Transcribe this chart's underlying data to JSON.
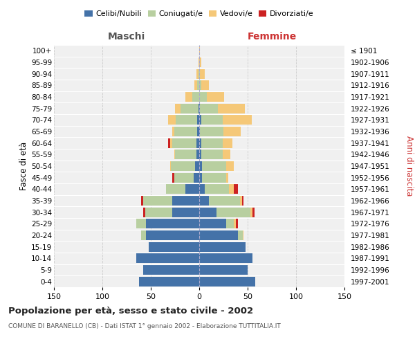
{
  "age_groups": [
    "0-4",
    "5-9",
    "10-14",
    "15-19",
    "20-24",
    "25-29",
    "30-34",
    "35-39",
    "40-44",
    "45-49",
    "50-54",
    "55-59",
    "60-64",
    "65-69",
    "70-74",
    "75-79",
    "80-84",
    "85-89",
    "90-94",
    "95-99",
    "100+"
  ],
  "birth_years": [
    "1997-2001",
    "1992-1996",
    "1987-1991",
    "1982-1986",
    "1977-1981",
    "1972-1976",
    "1967-1971",
    "1962-1966",
    "1957-1961",
    "1952-1956",
    "1947-1951",
    "1942-1946",
    "1937-1941",
    "1932-1936",
    "1927-1931",
    "1922-1926",
    "1917-1921",
    "1912-1916",
    "1907-1911",
    "1902-1906",
    "≤ 1901"
  ],
  "male_celibi": [
    62,
    58,
    65,
    52,
    55,
    55,
    28,
    28,
    14,
    6,
    4,
    3,
    3,
    2,
    2,
    1,
    0,
    0,
    0,
    0,
    0
  ],
  "male_coniugati": [
    0,
    0,
    0,
    0,
    5,
    10,
    28,
    30,
    20,
    20,
    25,
    22,
    25,
    24,
    22,
    18,
    7,
    2,
    1,
    0,
    0
  ],
  "male_vedovi": [
    0,
    0,
    0,
    0,
    0,
    0,
    0,
    0,
    0,
    0,
    1,
    1,
    2,
    2,
    8,
    6,
    7,
    3,
    2,
    1,
    0
  ],
  "male_divorziati": [
    0,
    0,
    0,
    0,
    0,
    0,
    2,
    2,
    0,
    2,
    0,
    0,
    2,
    0,
    0,
    0,
    0,
    0,
    0,
    0,
    0
  ],
  "female_nubili": [
    58,
    50,
    55,
    48,
    40,
    28,
    18,
    10,
    6,
    3,
    3,
    2,
    2,
    1,
    2,
    1,
    0,
    0,
    0,
    0,
    0
  ],
  "female_coniugate": [
    0,
    0,
    0,
    0,
    5,
    8,
    35,
    32,
    25,
    25,
    25,
    22,
    22,
    24,
    22,
    18,
    8,
    2,
    1,
    0,
    0
  ],
  "female_vedove": [
    0,
    0,
    0,
    0,
    1,
    2,
    2,
    2,
    5,
    2,
    8,
    8,
    10,
    18,
    30,
    28,
    18,
    8,
    5,
    2,
    1
  ],
  "female_divorziate": [
    0,
    0,
    0,
    0,
    0,
    2,
    2,
    2,
    4,
    0,
    0,
    0,
    0,
    0,
    0,
    0,
    0,
    0,
    0,
    0,
    0
  ],
  "colors": {
    "celibi": "#4472a8",
    "coniugati": "#b8cfa0",
    "vedovi": "#f5c878",
    "divorziati": "#cc2222"
  },
  "xlim": 150,
  "title": "Popolazione per età, sesso e stato civile - 2002",
  "subtitle": "COMUNE DI BARANELLO (CB) - Dati ISTAT 1° gennaio 2002 - Elaborazione TUTTITALIA.IT",
  "ylabel_left": "Fasce di età",
  "ylabel_right": "Anni di nascita",
  "xlabel_left": "Maschi",
  "xlabel_right": "Femmine",
  "background_color": "#f0f0f0",
  "grid_color": "#cccccc"
}
